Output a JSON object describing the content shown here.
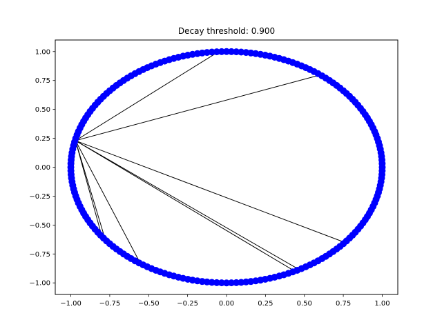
{
  "chart_data": {
    "type": "scatter",
    "title": "Decay threshold: 0.900",
    "xlabel": "",
    "ylabel": "",
    "xlim": [
      -1.1,
      1.1
    ],
    "ylim": [
      -1.1,
      1.1
    ],
    "xticks": [
      -1.0,
      -0.75,
      -0.5,
      -0.25,
      0.0,
      0.25,
      0.5,
      0.75,
      1.0
    ],
    "yticks": [
      -1.0,
      -0.75,
      -0.5,
      -0.25,
      0.0,
      0.25,
      0.5,
      0.75,
      1.0
    ],
    "xtick_labels": [
      "−1.00",
      "−0.75",
      "−0.50",
      "−0.25",
      "0.00",
      "0.25",
      "0.50",
      "0.75",
      "1.00"
    ],
    "ytick_labels": [
      "−1.00",
      "−0.75",
      "−0.50",
      "−0.25",
      "0.00",
      "0.25",
      "0.50",
      "0.75",
      "1.00"
    ],
    "grid": false,
    "point_color": "#0000ff",
    "edge_color": "#000000",
    "point_count": 200,
    "points_on": "unit circle",
    "hub": [
      -0.97,
      0.23
    ],
    "edges": [
      [
        [
          -0.97,
          0.23
        ],
        [
          -0.05,
          1.0
        ]
      ],
      [
        [
          -0.97,
          0.23
        ],
        [
          0.58,
          0.79
        ]
      ],
      [
        [
          -0.97,
          0.23
        ],
        [
          0.74,
          -0.64
        ]
      ],
      [
        [
          -0.97,
          0.23
        ],
        [
          0.46,
          -0.88
        ]
      ],
      [
        [
          -0.97,
          0.23
        ],
        [
          0.44,
          -0.9
        ]
      ],
      [
        [
          -0.97,
          0.23
        ],
        [
          -0.55,
          -0.84
        ]
      ],
      [
        [
          -0.97,
          0.23
        ],
        [
          -0.78,
          -0.62
        ]
      ],
      [
        [
          -0.97,
          0.23
        ],
        [
          -0.8,
          -0.6
        ]
      ],
      [
        [
          -0.97,
          0.23
        ],
        [
          -0.99,
          -0.1
        ]
      ]
    ]
  }
}
